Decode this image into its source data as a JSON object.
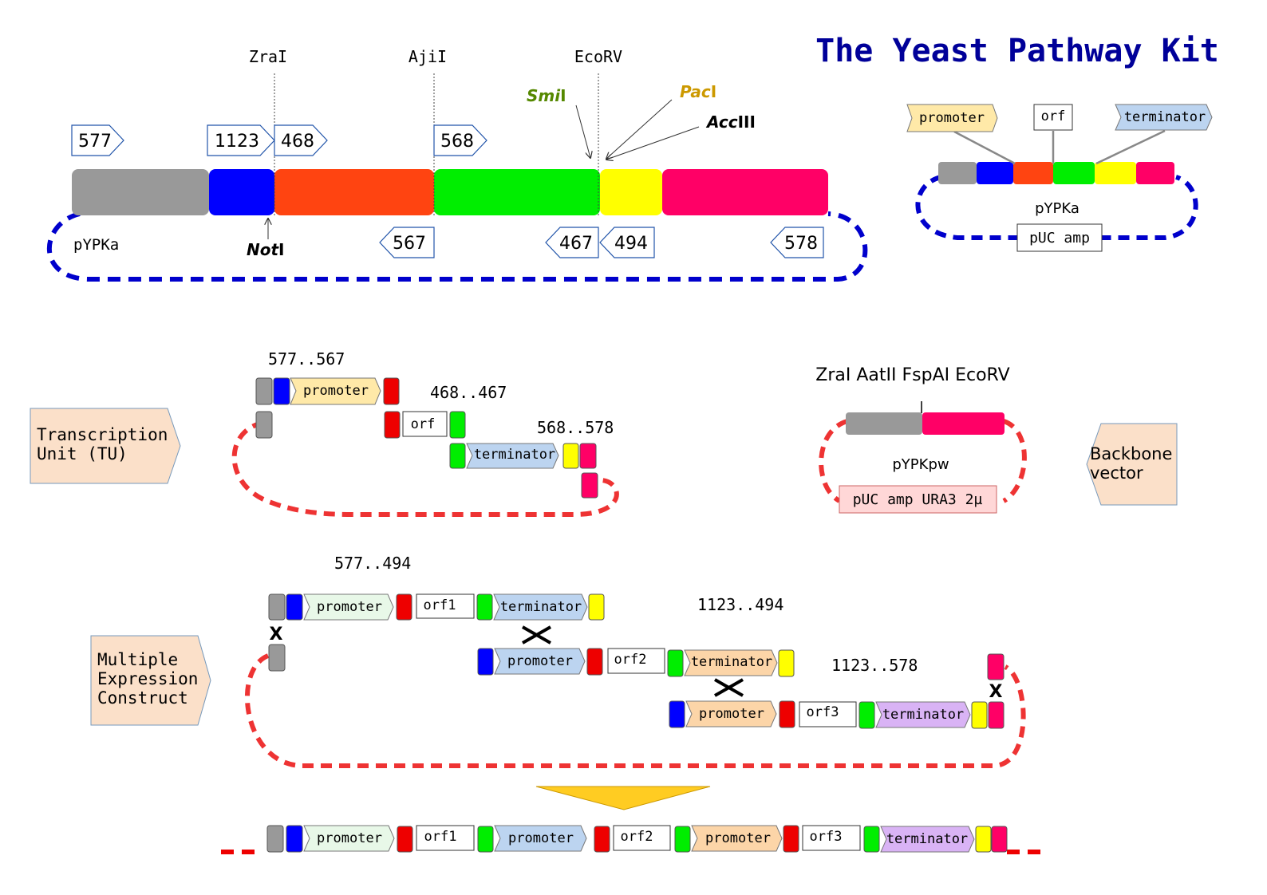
{
  "title": "The Yeast Pathway Kit",
  "colors": {
    "gray": "#999999",
    "blue": "#0000ff",
    "orange": "#ff4411",
    "green": "#00ee00",
    "yellow": "#ffff00",
    "pink": "#ff0066",
    "red": "#ee0000",
    "dash_blue": "#0000cc",
    "dash_red": "#ee3333",
    "title": "#000099"
  },
  "top": {
    "sites": [
      "ZraI",
      "AjiI",
      "EcoRV"
    ],
    "smi": {
      "a": "Smi",
      "b": "I"
    },
    "pac": {
      "a": "Pac",
      "b": "I"
    },
    "acc": {
      "a": "Acc",
      "b": "III"
    },
    "not": {
      "a": "Not",
      "b": "I"
    },
    "fwd": [
      "577",
      "1123",
      "468",
      "568"
    ],
    "rev": [
      "567",
      "467",
      "494",
      "578"
    ],
    "vector": "pYPKa"
  },
  "inset": {
    "promoter": "promoter",
    "orf": "orf",
    "terminator": "terminator",
    "vector": "pYPKa",
    "marker": "pUC amp"
  },
  "tu": {
    "label1": "Transcription",
    "label2": "Unit (TU)",
    "r1": "577..567",
    "r2": "468..467",
    "r3": "568..578",
    "promoter": "promoter",
    "orf": "orf",
    "terminator": "terminator"
  },
  "backbone": {
    "sites": "ZraI AatII FspAI EcoRV",
    "vector": "pYPKpw",
    "marker": "pUC amp URA3 2µ",
    "label1": "Backbone",
    "label2": "vector"
  },
  "mec": {
    "label1": "Multiple",
    "label2": "Expression",
    "label3": "Construct",
    "r1": "577..494",
    "r2": "1123..494",
    "r3": "1123..578",
    "promoter": "promoter",
    "terminator": "terminator",
    "orf1": "orf1",
    "orf2": "orf2",
    "orf3": "orf3",
    "cross": "X"
  },
  "result": {
    "promoter": "promoter",
    "terminator": "terminator",
    "orf1": "orf1",
    "orf2": "orf2",
    "orf3": "orf3"
  }
}
